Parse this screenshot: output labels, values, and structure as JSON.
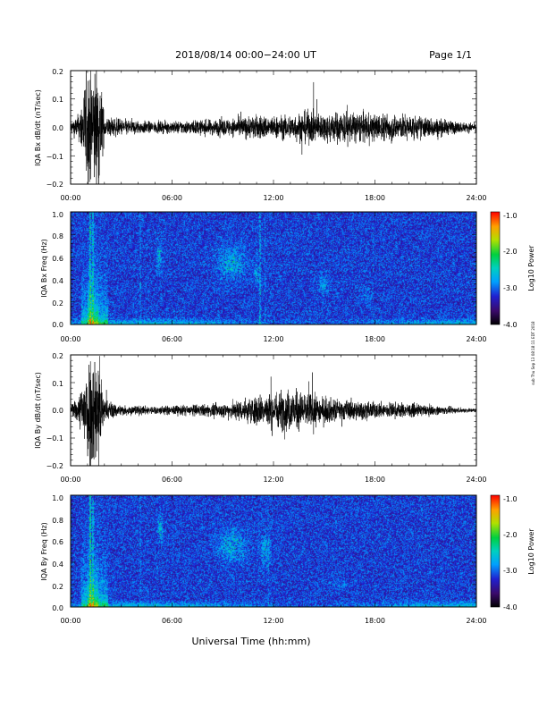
{
  "header": {
    "title": "2018/08/14  00:00−24:00 UT",
    "page": "Page 1/1"
  },
  "xaxis": {
    "label": "Universal Time (hh:mm)",
    "ticks": [
      "00:00",
      "06:00",
      "12:00",
      "18:00",
      "24:00"
    ]
  },
  "side_note": "sub Thu Sep 13 08:18:11 EDT 2018",
  "colorbar": {
    "label": "Log10 Power",
    "ticks": [
      "-1.0",
      "-2.0",
      "-3.0",
      "-4.0"
    ]
  },
  "chart_data": [
    {
      "type": "line",
      "title": "",
      "ylabel": "IQA Bx dB/dt (nT/sec)",
      "xlabel": "",
      "xlim": [
        "00:00",
        "24:00"
      ],
      "ylim": [
        -0.2,
        0.2
      ],
      "yticks": [
        "0.2",
        "0.1",
        "0.0",
        "−0.1",
        "−0.2"
      ],
      "amplitude_envelope": {
        "x_hours": [
          0,
          0.5,
          1.0,
          1.3,
          1.7,
          2.0,
          3,
          5,
          7,
          9,
          10,
          11,
          12,
          13,
          14,
          15,
          16,
          17,
          18,
          19,
          20,
          21,
          22,
          23,
          24
        ],
        "amplitude": [
          0.02,
          0.05,
          0.22,
          0.22,
          0.22,
          0.04,
          0.03,
          0.02,
          0.025,
          0.03,
          0.035,
          0.045,
          0.04,
          0.045,
          0.06,
          0.05,
          0.06,
          0.055,
          0.05,
          0.05,
          0.045,
          0.04,
          0.03,
          0.02,
          0.015
        ]
      }
    },
    {
      "type": "heatmap",
      "title": "",
      "ylabel": "IQA Bx Freq (Hz)",
      "xlabel": "",
      "xlim": [
        "00:00",
        "24:00"
      ],
      "ylim": [
        0,
        1.0
      ],
      "yticks": [
        "1.0",
        "0.8",
        "0.6",
        "0.4",
        "0.2",
        "0.0"
      ],
      "colorbar_range": [
        -4.0,
        -1.0
      ],
      "colorbar_label": "Log10 Power"
    },
    {
      "type": "line",
      "title": "",
      "ylabel": "IQA By dB/dt (nT/sec)",
      "xlabel": "",
      "xlim": [
        "00:00",
        "24:00"
      ],
      "ylim": [
        -0.2,
        0.2
      ],
      "yticks": [
        "0.2",
        "0.1",
        "0.0",
        "−0.1",
        "−0.2"
      ],
      "amplitude_envelope": {
        "x_hours": [
          0,
          0.5,
          1.0,
          1.3,
          1.7,
          2.0,
          3,
          5,
          7,
          9,
          10,
          11,
          12,
          13,
          14,
          15,
          16,
          17,
          18,
          19,
          20,
          21,
          22,
          23,
          24
        ],
        "amplitude": [
          0.02,
          0.05,
          0.22,
          0.22,
          0.22,
          0.04,
          0.02,
          0.015,
          0.02,
          0.025,
          0.04,
          0.055,
          0.07,
          0.08,
          0.065,
          0.05,
          0.04,
          0.035,
          0.03,
          0.03,
          0.025,
          0.02,
          0.015,
          0.01,
          0.008
        ]
      }
    },
    {
      "type": "heatmap",
      "title": "",
      "ylabel": "IQA By Freq (Hz)",
      "xlabel": "",
      "xlim": [
        "00:00",
        "24:00"
      ],
      "ylim": [
        0,
        1.0
      ],
      "yticks": [
        "1.0",
        "0.8",
        "0.6",
        "0.4",
        "0.2",
        "0.0"
      ],
      "colorbar_range": [
        -4.0,
        -1.0
      ],
      "colorbar_label": "Log10 Power"
    }
  ]
}
